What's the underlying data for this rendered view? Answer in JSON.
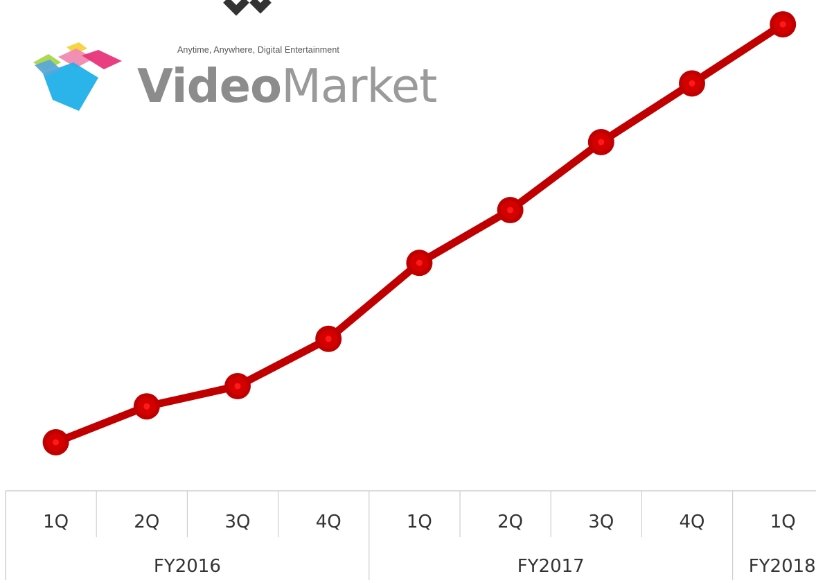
{
  "brand": {
    "tagline": "Anytime, Anywhere, Digital Entertainment",
    "name_bold": "Video",
    "name_light": "Market",
    "logo_colors": [
      "#a8d64a",
      "#f5d23a",
      "#f08ab0",
      "#e8357a",
      "#1fb0e8",
      "#5aa8d8"
    ]
  },
  "decor": {
    "top_mark": "chevron-down-icon",
    "color": "#333333"
  },
  "colors": {
    "line": "#c00000",
    "point_inner": "#ff1a1a",
    "grid": "#cfcfcf",
    "label": "#333333"
  },
  "chart_data": {
    "type": "line",
    "categories": [
      "1Q",
      "2Q",
      "3Q",
      "4Q",
      "1Q",
      "2Q",
      "3Q",
      "4Q",
      "1Q"
    ],
    "groups": [
      {
        "label": "FY2016",
        "span": 4
      },
      {
        "label": "FY2017",
        "span": 4
      },
      {
        "label": "FY2018",
        "span": 1
      }
    ],
    "series": [
      {
        "values": [
          0.0,
          8.5,
          13.3,
          24.5,
          42.5,
          55.0,
          71.1,
          85.0,
          99.0
        ]
      }
    ],
    "ylim": [
      0,
      100
    ],
    "grid": false,
    "legend": false
  }
}
